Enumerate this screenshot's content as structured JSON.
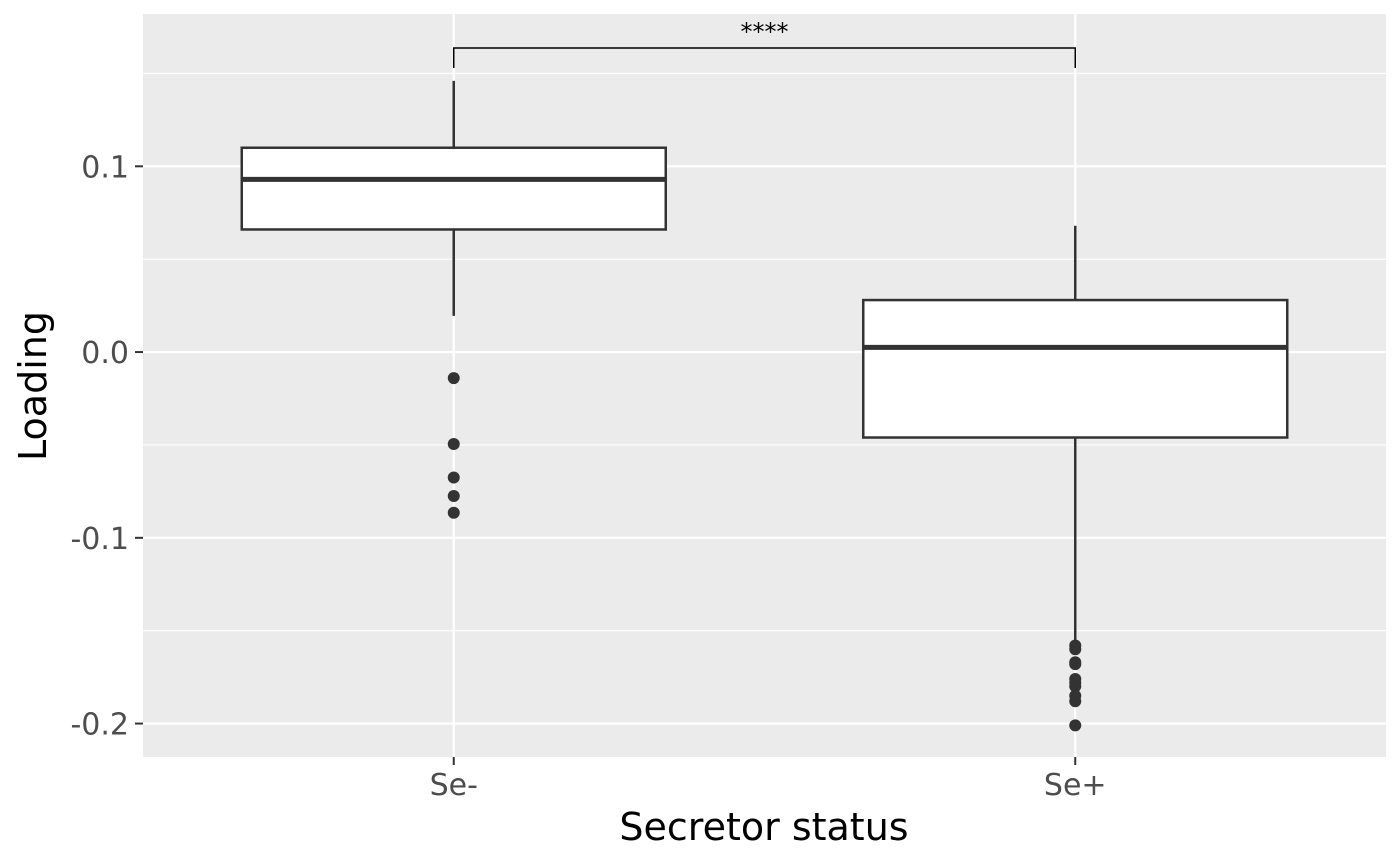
{
  "chart_data": {
    "type": "boxplot",
    "title": "",
    "xlabel": "Secretor status",
    "ylabel": "Loading",
    "ylim": [
      -0.218,
      0.182
    ],
    "y_ticks": [
      {
        "value": 0.1,
        "label": "0.1"
      },
      {
        "value": 0.0,
        "label": "0.0"
      },
      {
        "value": -0.1,
        "label": "-0.1"
      },
      {
        "value": -0.2,
        "label": "-0.2"
      }
    ],
    "y_minor_ticks": [
      0.15,
      0.05,
      -0.05,
      -0.15
    ],
    "grid": true,
    "legend": "none",
    "colors": {
      "panel": "#ebebeb",
      "grid": "#ffffff",
      "box_fill": "#ffffff",
      "box_stroke": "#333333",
      "outlier": "#333333"
    },
    "categories": [
      "Se-",
      "Se+"
    ],
    "boxes": [
      {
        "category": "Se-",
        "whisker_low": 0.0195,
        "q1": 0.066,
        "median": 0.093,
        "q3": 0.11,
        "whisker_high": 0.146,
        "outliers": [
          -0.014,
          -0.0495,
          -0.0675,
          -0.0775,
          -0.0865
        ]
      },
      {
        "category": "Se+",
        "whisker_low": -0.157,
        "q1": -0.046,
        "median": 0.0025,
        "q3": 0.028,
        "whisker_high": 0.068,
        "outliers": [
          -0.158,
          -0.16,
          -0.167,
          -0.168,
          -0.176,
          -0.178,
          -0.18,
          -0.185,
          -0.188,
          -0.201
        ]
      }
    ],
    "annotations": [
      {
        "type": "significance_bracket",
        "from": "Se-",
        "to": "Se+",
        "label": "****"
      }
    ]
  }
}
